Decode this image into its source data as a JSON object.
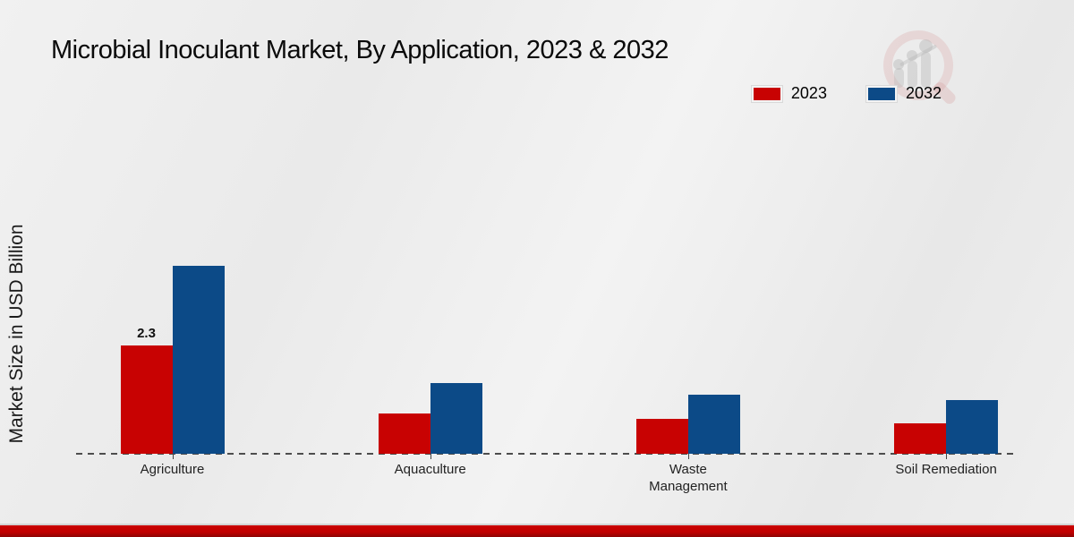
{
  "page": {
    "title": "Microbial Inoculant Market, By Application, 2023 & 2032",
    "ylabel": "Market Size in USD Billion"
  },
  "legend": {
    "items": [
      {
        "label": "2023",
        "color": "#c80202"
      },
      {
        "label": "2032",
        "color": "#0c4a87"
      }
    ]
  },
  "watermark": {
    "name": "market-research-future-logo"
  },
  "chart_data": {
    "type": "bar",
    "title": "Microbial Inoculant Market, By Application, 2023 & 2032",
    "xlabel": "",
    "ylabel": "Market Size in USD Billion",
    "categories": [
      "Agriculture",
      "Aquaculture",
      "Waste Management",
      "Soil Remediation"
    ],
    "series": [
      {
        "name": "2023",
        "color": "#c80202",
        "values": [
          2.3,
          0.85,
          0.75,
          0.65
        ]
      },
      {
        "name": "2032",
        "color": "#0c4a87",
        "values": [
          4.0,
          1.5,
          1.25,
          1.15
        ]
      }
    ],
    "annotations": [
      {
        "category_index": 0,
        "series_index": 0,
        "text": "2.3"
      }
    ],
    "unit": "USD Billion",
    "ylim": [
      0,
      4.6
    ],
    "grid": false,
    "axis_style": "dashed-baseline-only",
    "legend_position": "top-right"
  },
  "footer": {
    "accent_color": "#c00000"
  }
}
